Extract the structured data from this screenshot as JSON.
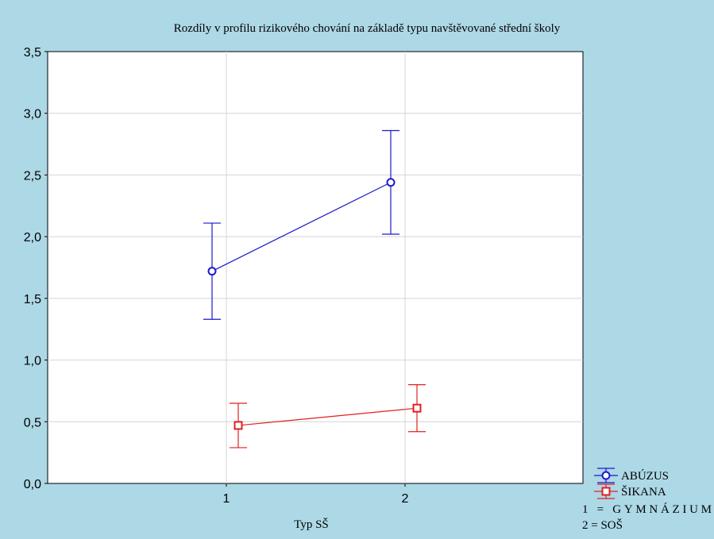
{
  "chart_data": {
    "type": "line",
    "title": "Rozdíly v profilu rizikového chování na základě typu navštěvované střední školy",
    "xlabel": "Typ SŠ",
    "ylabel": "",
    "categories": [
      "1",
      "2"
    ],
    "ylim": [
      0,
      3.5
    ],
    "yticks": [
      "0,0",
      "0,5",
      "1,0",
      "1,5",
      "2,0",
      "2,5",
      "3,0",
      "3,5"
    ],
    "grid": true,
    "legend_position": "bottom-right",
    "series": [
      {
        "name": "ABÚZUS",
        "color": "#1a1acc",
        "marker": "circle",
        "values": [
          1.72,
          2.44
        ],
        "lower": [
          1.33,
          2.02
        ],
        "upper": [
          2.11,
          2.86
        ]
      },
      {
        "name": "ŠIKANA",
        "color": "#e02020",
        "marker": "square",
        "values": [
          0.47,
          0.61
        ],
        "lower": [
          0.29,
          0.42
        ],
        "upper": [
          0.65,
          0.8
        ]
      }
    ],
    "notes": [
      "1 = GYMNÁZIUM",
      "2 = SOŠ"
    ]
  }
}
